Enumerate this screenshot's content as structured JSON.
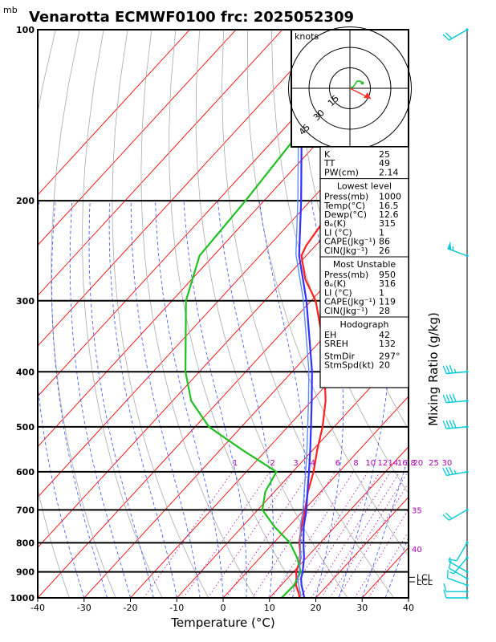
{
  "title": "Venarotta ECMWF0100  frc: 2025052309",
  "units": {
    "pressure": "mb",
    "xlabel": "Temperature (°C)",
    "mixing_ratio_label": "Mixing Ratio (g/kg)",
    "hodo_units": "knots"
  },
  "chart_data": {
    "type": "line",
    "title": "Venarotta ECMWF0100  frc: 2025052309",
    "xlabel": "Temperature (°C)",
    "ylabel": "mb",
    "xlim": [
      -40,
      40
    ],
    "ylim": [
      1000,
      100
    ],
    "yscale": "log",
    "x_ticks": [
      -40,
      -30,
      -20,
      -10,
      0,
      10,
      20,
      30,
      40
    ],
    "p_ticks": [
      100,
      200,
      300,
      400,
      500,
      600,
      700,
      800,
      900,
      1000
    ],
    "mixing_ratio_ticks": [
      "1",
      "2",
      "3",
      "4",
      "6",
      "8",
      "10",
      "12",
      "14",
      "16",
      "18",
      "20",
      "25",
      "30"
    ],
    "series": [
      {
        "color": "#ff2020",
        "points": [
          [
            1000,
            16.5
          ],
          [
            975,
            15.0
          ],
          [
            950,
            13.2
          ],
          [
            925,
            12.0
          ],
          [
            900,
            10.6
          ],
          [
            850,
            8.8
          ],
          [
            800,
            5.5
          ],
          [
            750,
            2.8
          ],
          [
            700,
            0.2
          ],
          [
            650,
            -2.8
          ],
          [
            600,
            -5.5
          ],
          [
            550,
            -9.0
          ],
          [
            500,
            -12.5
          ],
          [
            450,
            -17.0
          ],
          [
            400,
            -23.0
          ],
          [
            350,
            -30.0
          ],
          [
            300,
            -39.0
          ],
          [
            275,
            -45.5
          ],
          [
            250,
            -51.0
          ],
          [
            240,
            -52.0
          ],
          [
            200,
            -54.0
          ],
          [
            150,
            -56.0
          ],
          [
            125,
            -56.5
          ],
          [
            100,
            -58.0
          ]
        ]
      },
      {
        "color": "#20c020",
        "points": [
          [
            1000,
            12.6
          ],
          [
            975,
            12.7
          ],
          [
            950,
            12.8
          ],
          [
            925,
            12.2
          ],
          [
            900,
            11.6
          ],
          [
            850,
            8.0
          ],
          [
            800,
            3.5
          ],
          [
            750,
            -3.0
          ],
          [
            700,
            -9.0
          ],
          [
            650,
            -12.0
          ],
          [
            600,
            -13.5
          ],
          [
            550,
            -25.0
          ],
          [
            500,
            -37.0
          ],
          [
            450,
            -46.0
          ],
          [
            400,
            -53.0
          ],
          [
            300,
            -67.0
          ],
          [
            250,
            -73.0
          ],
          [
            200,
            -74.0
          ],
          [
            150,
            -76.0
          ],
          [
            100,
            -82.0
          ]
        ]
      },
      {
        "color": "#3030ff",
        "points": [
          [
            1000,
            17.5
          ],
          [
            975,
            16.0
          ],
          [
            950,
            14.4
          ],
          [
            925,
            13.0
          ],
          [
            900,
            12.0
          ],
          [
            850,
            9.5
          ],
          [
            800,
            6.4
          ],
          [
            750,
            3.3
          ],
          [
            700,
            0.5
          ],
          [
            650,
            -2.9
          ],
          [
            600,
            -6.5
          ],
          [
            550,
            -10.5
          ],
          [
            500,
            -15.0
          ],
          [
            450,
            -20.0
          ],
          [
            400,
            -25.7
          ],
          [
            350,
            -32.8
          ],
          [
            300,
            -41.0
          ],
          [
            250,
            -51.5
          ],
          [
            200,
            -62.0
          ],
          [
            150,
            -76.0
          ],
          [
            110,
            -89.0
          ],
          [
            100,
            -92.0
          ]
        ]
      }
    ],
    "levels": [
      {
        "label": "LCL",
        "p": 920
      },
      {
        "label": "LCL",
        "p": 937
      }
    ],
    "winds": [
      {
        "p": 1000,
        "dir": 270,
        "spd": 10
      },
      {
        "p": 975,
        "dir": 270,
        "spd": 12
      },
      {
        "p": 950,
        "dir": 290,
        "spd": 13
      },
      {
        "p": 925,
        "dir": 300,
        "spd": 12
      },
      {
        "p": 900,
        "dir": 300,
        "spd": 8
      },
      {
        "p": 850,
        "dir": 220,
        "spd": 8
      },
      {
        "p": 800,
        "dir": 210,
        "spd": 12
      },
      {
        "p": 700,
        "dir": 240,
        "spd": 22
      },
      {
        "p": 600,
        "dir": 260,
        "spd": 35
      },
      {
        "p": 500,
        "dir": 265,
        "spd": 40
      },
      {
        "p": 450,
        "dir": 265,
        "spd": 40
      },
      {
        "p": 400,
        "dir": 265,
        "spd": 35
      },
      {
        "p": 250,
        "dir": 290,
        "spd": 55
      },
      {
        "p": 100,
        "dir": 240,
        "spd": 20
      }
    ],
    "hodograph": {
      "ring_labels": [
        "15",
        "30",
        "45"
      ],
      "points": [
        [
          0,
          0
        ],
        [
          2,
          1
        ],
        [
          4,
          4
        ],
        [
          6,
          4
        ],
        [
          7,
          3
        ]
      ],
      "storm_motion": [
        10,
        -5
      ]
    }
  },
  "tables": {
    "indices": [
      {
        "label": "K",
        "value": "25"
      },
      {
        "label": "TT",
        "value": "49"
      },
      {
        "label": "PW(cm)",
        "value": "2.14"
      }
    ],
    "lowest": {
      "heading": "Lowest level",
      "rows": [
        {
          "label": "Press(mb)",
          "value": "1000"
        },
        {
          "label": "Temp(°C)",
          "value": "16.5"
        },
        {
          "label": "Dewp(°C)",
          "value": "12.6"
        },
        {
          "label": "θₑ(K)",
          "value": "315"
        },
        {
          "label": "LI (°C)",
          "value": "1"
        },
        {
          "label": "CAPE(Jkg⁻¹)",
          "value": "86"
        },
        {
          "label": "CIN(Jkg⁻¹)",
          "value": "26"
        }
      ]
    },
    "unstable": {
      "heading": "Most Unstable",
      "rows": [
        {
          "label": "Press(mb)",
          "value": "950"
        },
        {
          "label": "θₑ(K)",
          "value": "316"
        },
        {
          "label": "LI (°C)",
          "value": "1"
        },
        {
          "label": "CAPE(Jkg⁻¹)",
          "value": "119"
        },
        {
          "label": "CIN(Jkg⁻¹)",
          "value": "28"
        }
      ]
    },
    "hodo": {
      "heading": "Hodograph",
      "rows": [
        {
          "label": "EH",
          "value": "42"
        },
        {
          "label": "SREH",
          "value": "132"
        },
        {
          "label": "StmDir",
          "value": "297°"
        },
        {
          "label": "StmSpd(kt)",
          "value": "20"
        }
      ]
    }
  },
  "right_labels": {
    "isotherm_labels": [
      "35",
      "40"
    ]
  },
  "colors": {
    "temperature": "#ff2020",
    "dewpoint": "#20c020",
    "parcel": "#3030ff",
    "isotherm": "#ff0000",
    "dry_adiabat": "#aaaaaa",
    "moist_adiabat": "#3050ff",
    "mixing_ratio": "#b000b0",
    "wind_barb": "#00c8d8"
  }
}
